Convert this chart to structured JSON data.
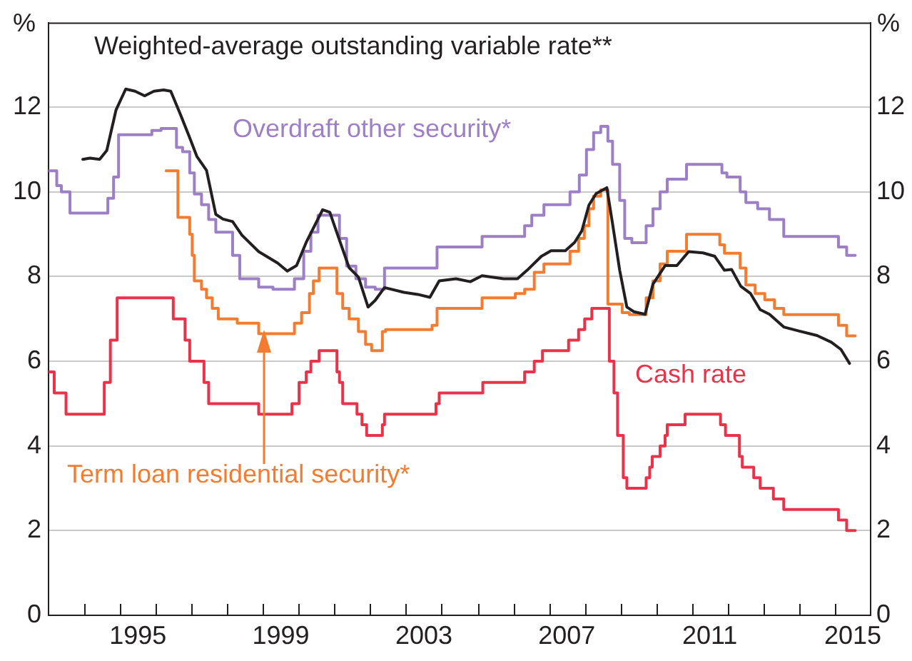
{
  "chart_data": {
    "type": "step",
    "xlim": [
      1993,
      2016
    ],
    "xticks": [
      {
        "value": 1994,
        "label": null
      },
      {
        "value": 1995,
        "label": null
      },
      {
        "value": 1995.5,
        "label": "1995"
      },
      {
        "value": 1996,
        "label": null
      },
      {
        "value": 1997,
        "label": null
      },
      {
        "value": 1998,
        "label": null
      },
      {
        "value": 1999,
        "label": null
      },
      {
        "value": 1999.5,
        "label": "1999"
      },
      {
        "value": 2000,
        "label": null
      },
      {
        "value": 2001,
        "label": null
      },
      {
        "value": 2002,
        "label": null
      },
      {
        "value": 2003,
        "label": null
      },
      {
        "value": 2003.5,
        "label": "2003"
      },
      {
        "value": 2004,
        "label": null
      },
      {
        "value": 2005,
        "label": null
      },
      {
        "value": 2006,
        "label": null
      },
      {
        "value": 2007,
        "label": null
      },
      {
        "value": 2007.5,
        "label": "2007"
      },
      {
        "value": 2008,
        "label": null
      },
      {
        "value": 2009,
        "label": null
      },
      {
        "value": 2010,
        "label": null
      },
      {
        "value": 2011,
        "label": null
      },
      {
        "value": 2011.5,
        "label": "2011"
      },
      {
        "value": 2012,
        "label": null
      },
      {
        "value": 2013,
        "label": null
      },
      {
        "value": 2014,
        "label": null
      },
      {
        "value": 2015,
        "label": null
      },
      {
        "value": 2015.5,
        "label": "2015"
      }
    ],
    "ylim": [
      0,
      14
    ],
    "yticks": [
      0,
      2,
      4,
      6,
      8,
      10,
      12
    ],
    "y2lim": [
      0,
      14
    ],
    "y2ticks": [
      0,
      2,
      4,
      6,
      8,
      10,
      12
    ],
    "ylabel": "%",
    "y2label": "%",
    "grid": "y",
    "legend": false,
    "series": [
      {
        "name": "Weighted-average outstanding variable rate**",
        "type": "line",
        "color": "#231f20",
        "x": [
          1993.96,
          1994.16,
          1994.43,
          1994.63,
          1994.89,
          1995.16,
          1995.42,
          1995.69,
          1995.95,
          1996.22,
          1996.42,
          1996.69,
          1996.95,
          1997.15,
          1997.42,
          1997.68,
          1997.88,
          1998.15,
          1998.41,
          1998.88,
          1999.41,
          1999.68,
          1999.94,
          2000.21,
          2000.67,
          2000.87,
          2001.07,
          2001.41,
          2001.67,
          2001.94,
          2002.14,
          2002.4,
          2002.94,
          2003.33,
          2003.67,
          2003.93,
          2004.4,
          2004.8,
          2005.13,
          2005.73,
          2006.12,
          2006.39,
          2006.79,
          2007.06,
          2007.46,
          2007.72,
          2007.92,
          2008.12,
          2008.32,
          2008.62,
          2008.78,
          2008.98,
          2009.18,
          2009.38,
          2009.69,
          2009.91,
          2010.25,
          2010.58,
          2010.91,
          2011.31,
          2011.64,
          2011.91,
          2012.11,
          2012.37,
          2012.64,
          2012.91,
          2013.17,
          2013.57,
          2013.97,
          2014.5,
          2014.9,
          2015.17,
          2015.41
        ],
        "values": [
          10.77,
          10.8,
          10.77,
          10.98,
          11.94,
          12.43,
          12.38,
          12.27,
          12.38,
          12.41,
          12.38,
          11.83,
          11.28,
          10.84,
          10.51,
          9.47,
          9.36,
          9.3,
          8.98,
          8.59,
          8.32,
          8.13,
          8.26,
          8.81,
          9.58,
          9.52,
          9.03,
          8.21,
          7.99,
          7.28,
          7.44,
          7.74,
          7.63,
          7.58,
          7.51,
          7.9,
          7.95,
          7.88,
          8.02,
          7.95,
          7.95,
          8.15,
          8.48,
          8.61,
          8.61,
          8.81,
          9.08,
          9.69,
          9.96,
          10.1,
          9.25,
          8.15,
          7.28,
          7.17,
          7.11,
          7.82,
          8.26,
          8.26,
          8.59,
          8.56,
          8.48,
          8.15,
          8.17,
          7.77,
          7.6,
          7.22,
          7.11,
          6.81,
          6.72,
          6.61,
          6.45,
          6.28,
          5.95
        ]
      },
      {
        "name": "Overdraft other security*",
        "color": "#9d7fc6",
        "x": [
          1993,
          1993.23,
          1993.36,
          1993.6,
          1994.66,
          1994.82,
          1994.96,
          1995.89,
          1996.15,
          1996.58,
          1996.75,
          1996.95,
          1997.08,
          1997.28,
          1997.48,
          1997.68,
          1998.15,
          1998.35,
          1998.88,
          1999.28,
          1999.88,
          2000.14,
          2000.34,
          2000.54,
          2001.14,
          2001.34,
          2001.6,
          2001.87,
          2002.14,
          2002.4,
          2003.87,
          2005.13,
          2006.32,
          2006.52,
          2006.86,
          2007.59,
          2007.85,
          2008.05,
          2008.25,
          2008.45,
          2008.65,
          2008.78,
          2008.98,
          2009.12,
          2009.32,
          2009.72,
          2009.91,
          2010.11,
          2010.31,
          2010.85,
          2011.84,
          2011.98,
          2012.35,
          2012.51,
          2012.84,
          2013.17,
          2013.57,
          2015.1,
          2015.33,
          2015.57
        ],
        "values": [
          10.5,
          10.15,
          10.0,
          9.5,
          9.85,
          10.35,
          11.35,
          11.45,
          11.5,
          11.05,
          10.95,
          10.45,
          9.95,
          9.7,
          9.35,
          9.05,
          8.5,
          7.95,
          7.75,
          7.7,
          7.95,
          8.6,
          9.05,
          9.45,
          8.9,
          8.25,
          7.95,
          7.75,
          7.7,
          8.2,
          8.7,
          8.95,
          9.2,
          9.45,
          9.7,
          10.0,
          10.4,
          11.0,
          11.4,
          11.55,
          11.2,
          10.65,
          9.8,
          8.9,
          8.8,
          9.2,
          9.6,
          10.0,
          10.3,
          10.65,
          10.45,
          10.35,
          10.0,
          9.75,
          9.6,
          9.35,
          8.95,
          8.7,
          8.5,
          8.5
        ]
      },
      {
        "name": "Term loan residential security*",
        "color": "#f47c30",
        "x": [
          1996.29,
          1996.62,
          1996.95,
          1997.02,
          1997.08,
          1997.28,
          1997.42,
          1997.58,
          1997.75,
          1998.28,
          1998.88,
          1999.88,
          2000.08,
          2000.3,
          2000.41,
          2000.57,
          2001.07,
          2001.23,
          2001.41,
          2001.67,
          2001.87,
          2002.04,
          2002.34,
          2002.43,
          2003.73,
          2003.87,
          2005.13,
          2006.06,
          2006.32,
          2006.59,
          2006.86,
          2007.59,
          2007.83,
          2007.99,
          2008.12,
          2008.25,
          2008.45,
          2008.65,
          2009.05,
          2009.25,
          2009.72,
          2009.91,
          2010.11,
          2010.31,
          2010.85,
          2011.78,
          2011.91,
          2012.35,
          2012.51,
          2012.77,
          2013.04,
          2013.31,
          2013.57,
          2015.1,
          2015.33,
          2015.57
        ],
        "values": [
          10.5,
          9.4,
          9.0,
          8.5,
          7.9,
          7.7,
          7.5,
          7.25,
          7.0,
          6.9,
          6.65,
          6.9,
          7.15,
          7.6,
          7.9,
          8.2,
          7.6,
          7.25,
          7.0,
          6.7,
          6.4,
          6.25,
          6.7,
          6.75,
          6.85,
          7.25,
          7.5,
          7.6,
          7.7,
          8.1,
          8.3,
          8.6,
          8.9,
          9.2,
          9.6,
          9.9,
          10.05,
          7.35,
          7.15,
          7.1,
          7.5,
          7.9,
          8.3,
          8.6,
          9.0,
          8.75,
          8.55,
          8.2,
          7.8,
          7.6,
          7.45,
          7.25,
          7.1,
          6.85,
          6.6,
          6.6
        ]
      },
      {
        "name": "Cash rate",
        "color": "#e8334a",
        "x": [
          1993,
          1993.16,
          1993.49,
          1994.56,
          1994.73,
          1994.92,
          1996.49,
          1996.82,
          1996.95,
          1997.35,
          1997.48,
          1998.88,
          1999.81,
          2000.01,
          2000.21,
          2000.34,
          2000.57,
          2001.07,
          2001.14,
          2001.23,
          2001.63,
          2001.77,
          2001.9,
          2002.34,
          2002.4,
          2003.84,
          2003.93,
          2005.15,
          2006.32,
          2006.59,
          2006.82,
          2007.55,
          2007.83,
          2008.0,
          2008.2,
          2008.69,
          2008.82,
          2008.92,
          2009.08,
          2009.18,
          2009.72,
          2009.82,
          2009.89,
          2010.11,
          2010.25,
          2010.31,
          2010.81,
          2011.8,
          2011.94,
          2012.33,
          2012.41,
          2012.73,
          2012.91,
          2013.28,
          2013.57,
          2015.1,
          2015.33,
          2015.57
        ],
        "values": [
          5.75,
          5.25,
          4.75,
          5.5,
          6.5,
          7.5,
          7.0,
          6.5,
          6.0,
          5.5,
          5.0,
          4.75,
          5.0,
          5.5,
          5.75,
          6.0,
          6.25,
          5.75,
          5.5,
          5.0,
          4.75,
          4.5,
          4.25,
          4.5,
          4.75,
          5.0,
          5.25,
          5.5,
          5.75,
          6.0,
          6.25,
          6.5,
          6.75,
          7.0,
          7.25,
          6.0,
          5.25,
          4.25,
          3.25,
          3.0,
          3.25,
          3.5,
          3.75,
          4.0,
          4.25,
          4.5,
          4.75,
          4.5,
          4.25,
          3.75,
          3.5,
          3.25,
          3.0,
          2.75,
          2.5,
          2.25,
          2.0,
          2.0
        ]
      }
    ]
  }
}
